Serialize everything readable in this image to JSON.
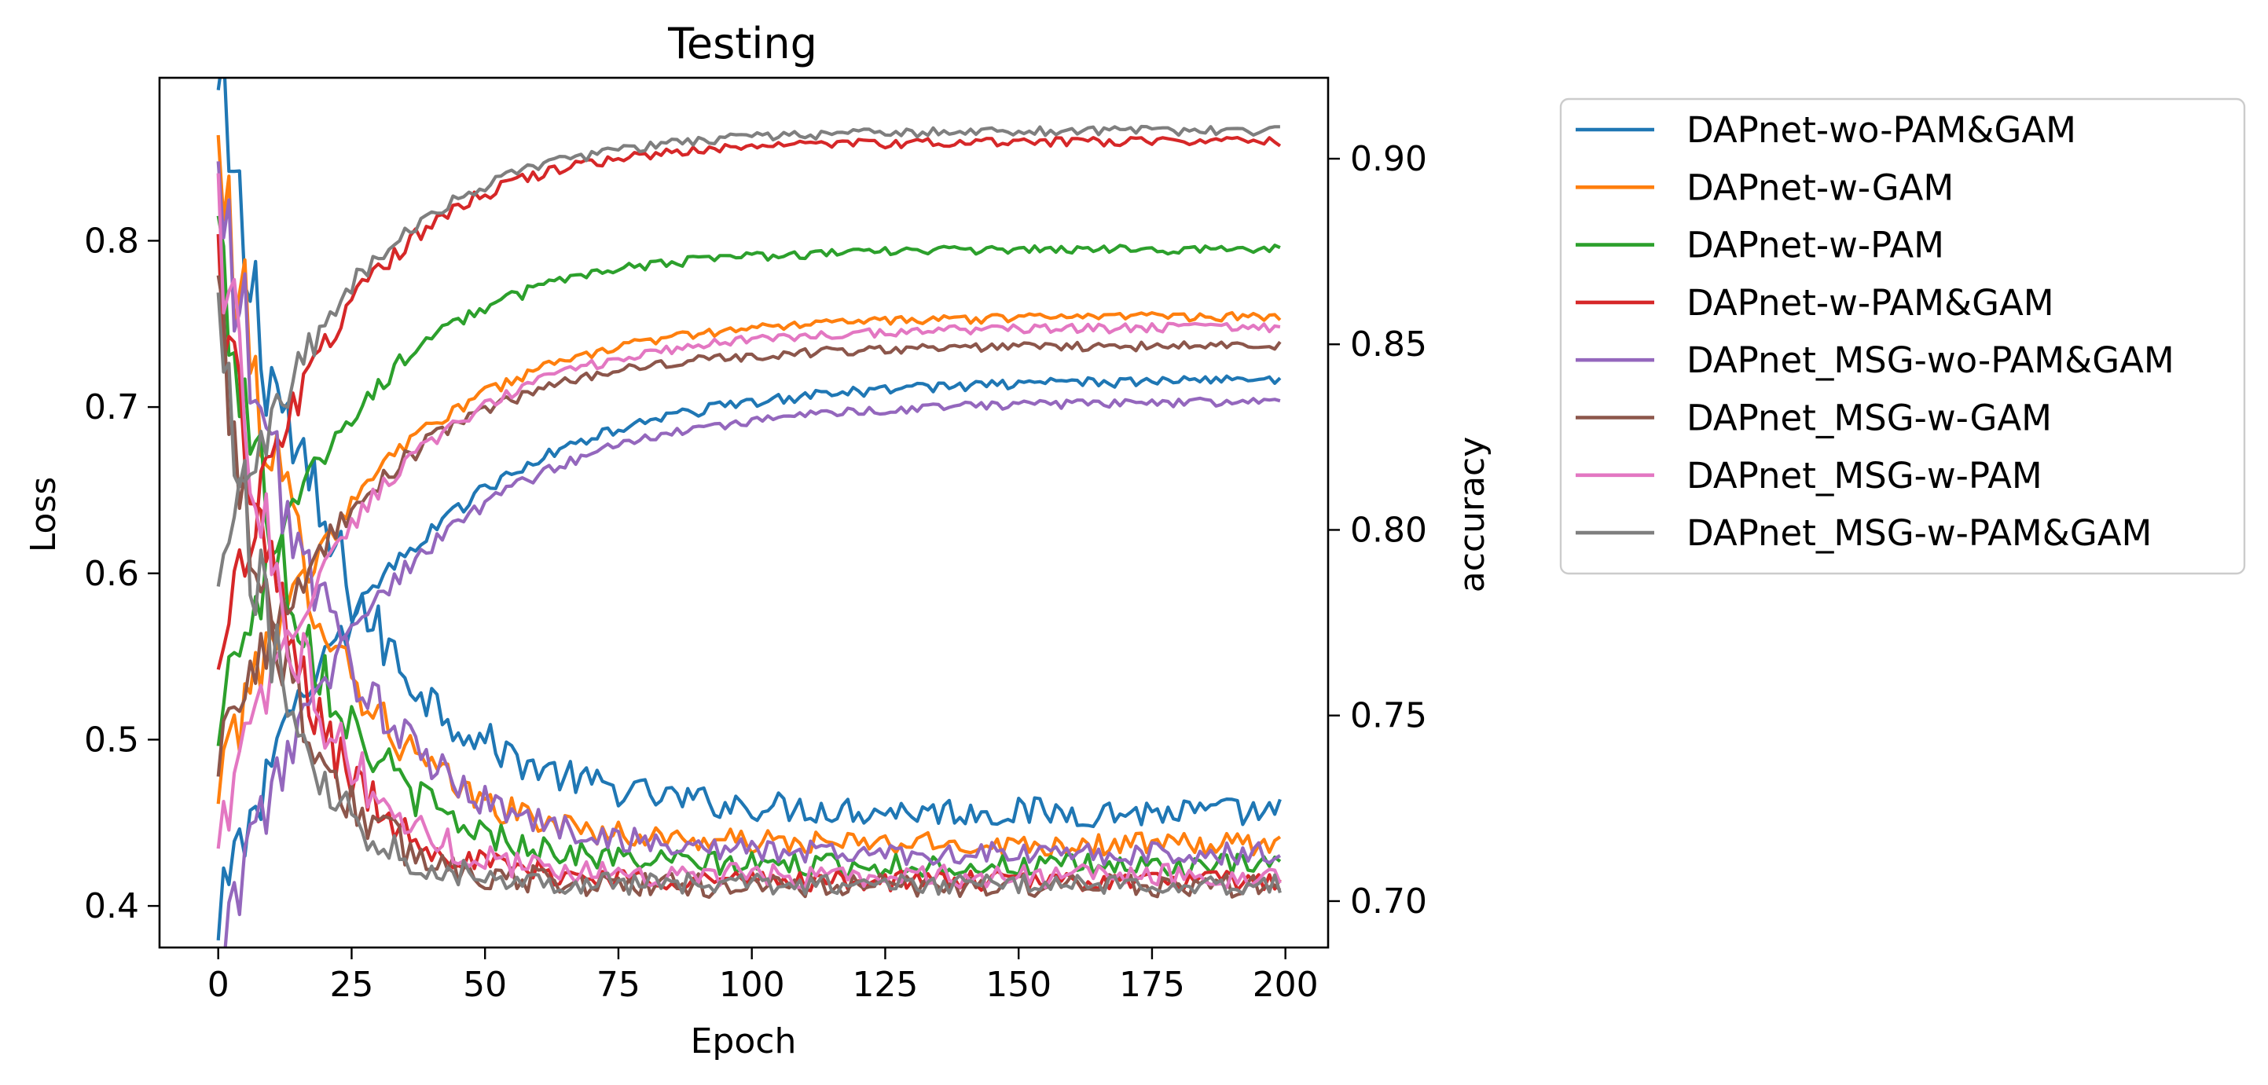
{
  "chart_data": {
    "type": "line",
    "title": "Testing",
    "xlabel": "Epoch",
    "ylabel_left": "Loss",
    "ylabel_right": "accuracy",
    "xlim": [
      -11,
      208
    ],
    "ylim_left": [
      0.375,
      0.898
    ],
    "ylim_right": [
      0.6875,
      0.9218
    ],
    "x_ticks": [
      0,
      25,
      50,
      75,
      100,
      125,
      150,
      175,
      200
    ],
    "y_ticks_left": [
      0.4,
      0.5,
      0.6,
      0.7,
      0.8
    ],
    "y_ticks_right": [
      0.7,
      0.75,
      0.8,
      0.85,
      0.9
    ],
    "y_tick_labels_right": [
      "0.70",
      "0.75",
      "0.80",
      "0.85",
      "0.90"
    ],
    "legend_position": "outside-right",
    "epochs": 200,
    "series": [
      {
        "name": "DAPnet-wo-PAM&GAM",
        "color": "#1f77b4",
        "loss": {
          "start": 0.875,
          "end": 0.456,
          "tau": 22,
          "noise": 0.009
        },
        "accuracy": {
          "start": 0.7,
          "end": 0.841,
          "tau": 32,
          "noise": 0.0018
        }
      },
      {
        "name": "DAPnet-w-GAM",
        "color": "#ff7f0e",
        "loss": {
          "start": 0.85,
          "end": 0.437,
          "tau": 18,
          "noise": 0.007
        },
        "accuracy": {
          "start": 0.735,
          "end": 0.858,
          "tau": 28,
          "noise": 0.0016
        }
      },
      {
        "name": "DAPnet-w-PAM",
        "color": "#2ca02c",
        "loss": {
          "start": 0.8,
          "end": 0.424,
          "tau": 17,
          "noise": 0.007
        },
        "accuracy": {
          "start": 0.75,
          "end": 0.876,
          "tau": 24,
          "noise": 0.0016
        }
      },
      {
        "name": "DAPnet-w-PAM&GAM",
        "color": "#d62728",
        "loss": {
          "start": 0.79,
          "end": 0.415,
          "tau": 14,
          "noise": 0.006
        },
        "accuracy": {
          "start": 0.77,
          "end": 0.905,
          "tau": 22,
          "noise": 0.0016
        }
      },
      {
        "name": "DAPnet_MSG-wo-PAM&GAM",
        "color": "#9467bd",
        "loss": {
          "start": 0.83,
          "end": 0.431,
          "tau": 20,
          "noise": 0.007
        },
        "accuracy": {
          "start": 0.69,
          "end": 0.835,
          "tau": 30,
          "noise": 0.0016
        }
      },
      {
        "name": "DAPnet_MSG-w-GAM",
        "color": "#8c564b",
        "loss": {
          "start": 0.76,
          "end": 0.412,
          "tau": 13,
          "noise": 0.007
        },
        "accuracy": {
          "start": 0.74,
          "end": 0.85,
          "tau": 27,
          "noise": 0.0016
        }
      },
      {
        "name": "DAPnet_MSG-w-PAM",
        "color": "#e377c2",
        "loss": {
          "start": 0.82,
          "end": 0.418,
          "tau": 14,
          "noise": 0.007
        },
        "accuracy": {
          "start": 0.72,
          "end": 0.855,
          "tau": 27,
          "noise": 0.0016
        }
      },
      {
        "name": "DAPnet_MSG-w-PAM&GAM",
        "color": "#7f7f7f",
        "loss": {
          "start": 0.75,
          "end": 0.413,
          "tau": 12,
          "noise": 0.006
        },
        "accuracy": {
          "start": 0.79,
          "end": 0.908,
          "tau": 24,
          "noise": 0.0016
        }
      }
    ]
  }
}
